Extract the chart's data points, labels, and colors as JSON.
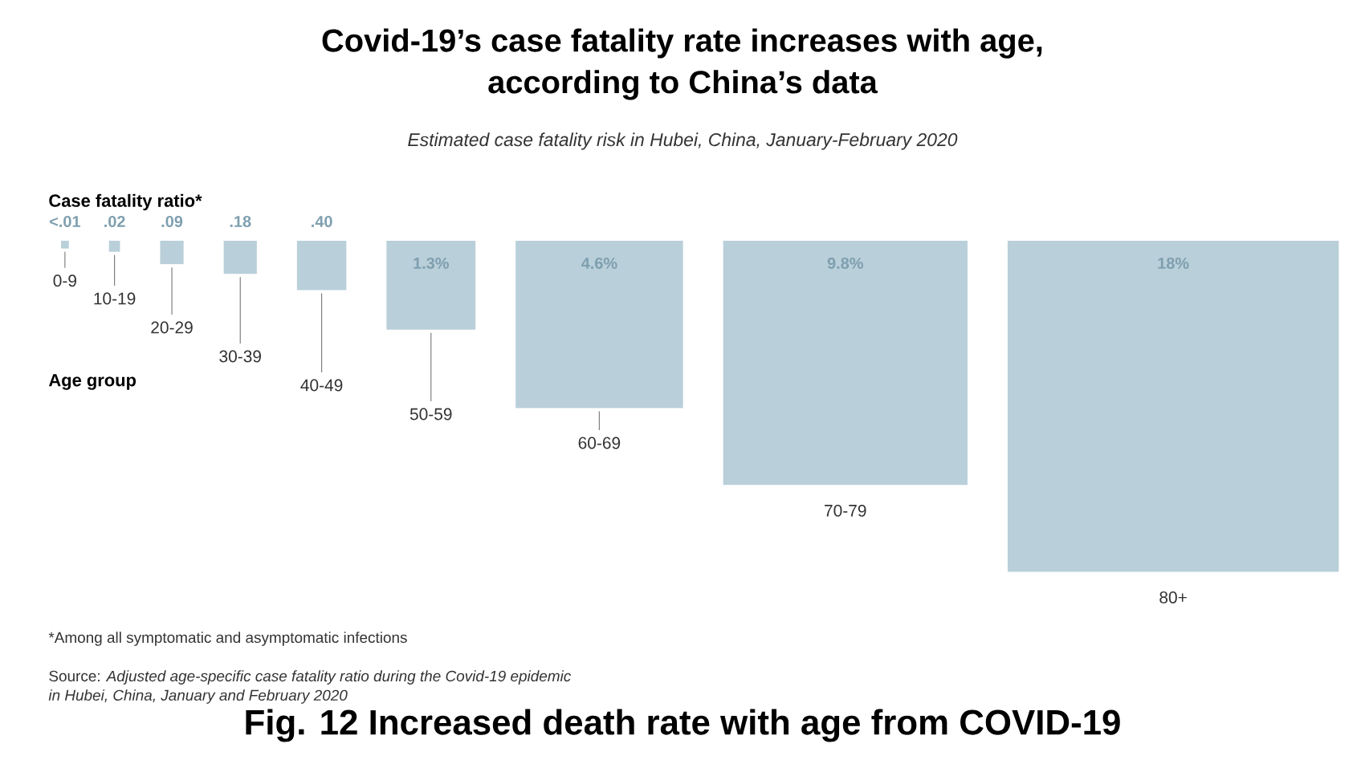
{
  "chart_data": {
    "type": "other",
    "title": "Covid-19’s case fatality rate increases with age, according to China’s data",
    "subtitle": "Estimated case fatality risk in Hubei, China, January-February 2020",
    "ylabel": "Case fatality ratio*",
    "xlabel": "Age group",
    "categories": [
      "0-9",
      "10-19",
      "20-29",
      "30-39",
      "40-49",
      "50-59",
      "60-69",
      "70-79",
      "80+"
    ],
    "values": [
      0.01,
      0.02,
      0.09,
      0.18,
      0.4,
      1.3,
      4.6,
      9.8,
      18
    ],
    "value_labels": [
      "<.01",
      ".02",
      ".09",
      ".18",
      ".40",
      "1.3%",
      "4.6%",
      "9.8%",
      "18%"
    ],
    "color": "#b9cfd9",
    "annotations": [
      "*Among all symptomatic and asymptomatic infections",
      "Source: *Adjusted age-specific case fatality ratio during the Covid-19 epidemic in Hubei, China, January and February 2020*",
      "Fig. 12 Increased death rate with age from COVID-19"
    ]
  }
}
